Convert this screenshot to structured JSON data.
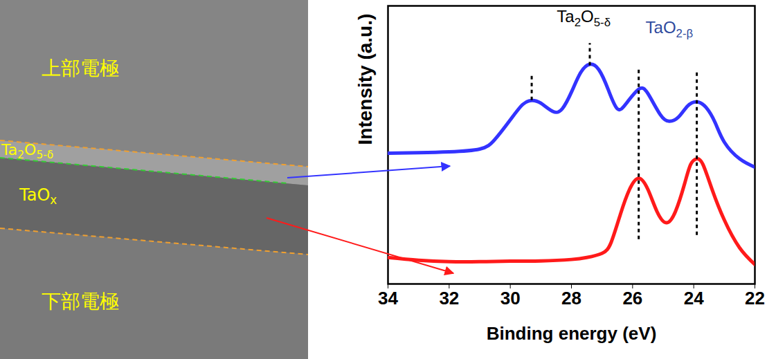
{
  "image_panel": {
    "labels": [
      "上部電極",
      "Ta2O5-δ",
      "TaOx",
      "下部電極"
    ]
  },
  "chart_data": {
    "type": "line",
    "x_label": "Binding energy (eV)",
    "y_label": "Intensity (a.u.)",
    "xlim": [
      34,
      22
    ],
    "xticks": [
      34,
      32,
      30,
      28,
      26,
      24,
      22
    ],
    "ylim": [
      0,
      10
    ],
    "yticks": [],
    "tick_labels": "x",
    "grid": false,
    "series": [
      {
        "color": "#3333ff",
        "x": [
          34,
          33,
          32,
          31,
          30.5,
          30,
          29.6,
          29.3,
          29,
          28.6,
          28.3,
          28,
          27.7,
          27.4,
          27.1,
          26.8,
          26.5,
          26.2,
          25.8,
          25.5,
          25.1,
          24.8,
          24.5,
          24.2,
          23.9,
          23.6,
          23.3,
          23,
          22.5,
          22
        ],
        "values": [
          4.7,
          4.72,
          4.75,
          4.85,
          5.2,
          5.9,
          6.45,
          6.6,
          6.5,
          6.2,
          6.3,
          6.9,
          7.6,
          7.9,
          7.7,
          7.0,
          6.3,
          6.5,
          7.0,
          6.85,
          6.1,
          5.85,
          6.0,
          6.4,
          6.55,
          6.35,
          5.8,
          5.1,
          4.5,
          4.2
        ]
      },
      {
        "color": "#ff1a1a",
        "x": [
          34,
          33,
          32,
          31,
          30,
          29,
          28,
          27.5,
          27,
          26.7,
          26.4,
          26.1,
          25.8,
          25.5,
          25.2,
          24.9,
          24.6,
          24.3,
          24.1,
          23.9,
          23.7,
          23.4,
          23,
          22.5,
          22
        ],
        "values": [
          0.95,
          0.85,
          0.8,
          0.8,
          0.82,
          0.83,
          0.88,
          0.95,
          1.1,
          1.5,
          2.5,
          3.4,
          3.8,
          3.4,
          2.6,
          2.2,
          2.6,
          3.6,
          4.3,
          4.5,
          4.3,
          3.4,
          2.3,
          1.3,
          0.7
        ]
      }
    ],
    "peak_lines": [
      {
        "x": 29.3,
        "y_from": 6.6,
        "y_to": 7.5
      },
      {
        "x": 27.4,
        "y_from": 7.85,
        "y_to": 8.65
      },
      {
        "x": 25.8,
        "y_from": 1.6,
        "y_to": 7.7
      },
      {
        "x": 23.9,
        "y_from": 1.75,
        "y_to": 7.7
      }
    ],
    "annotations": [
      {
        "text": "Ta2O5-δ",
        "x": 27.6,
        "y": 9.6,
        "color": "#000000"
      },
      {
        "text": "TaO2-β",
        "x": 24.8,
        "y": 9.2,
        "color": "#2e4a9e"
      }
    ]
  }
}
